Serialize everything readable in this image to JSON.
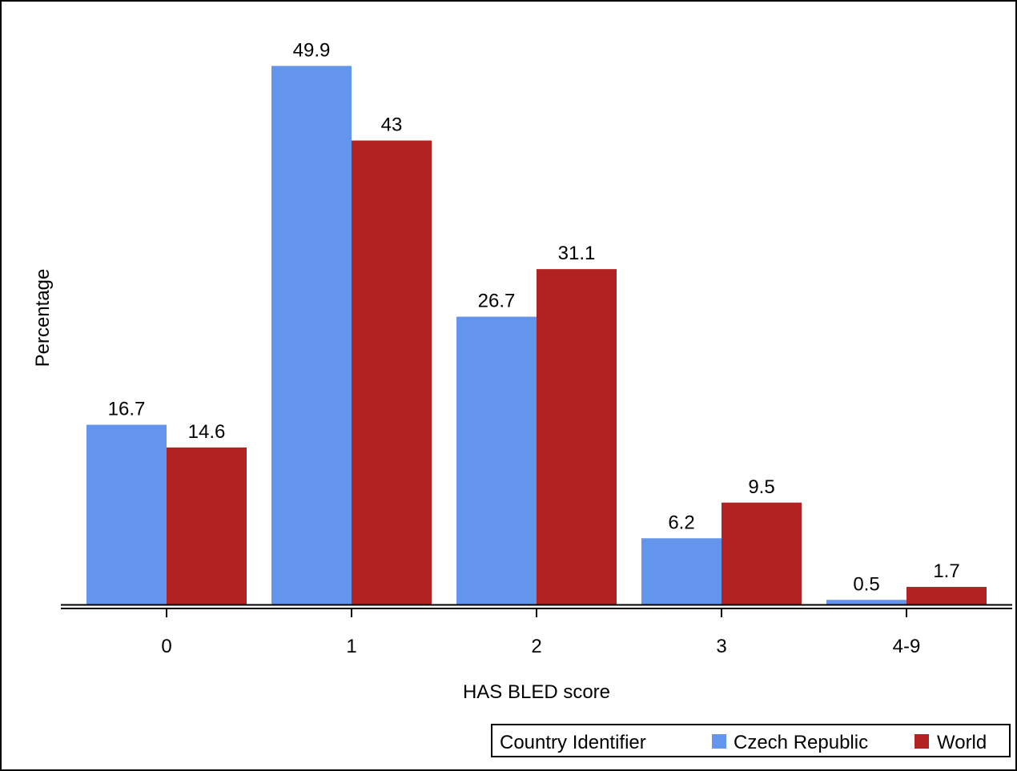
{
  "chart_data": {
    "type": "bar",
    "xlabel": "HAS BLED score",
    "ylabel": "Percentage",
    "categories": [
      "0",
      "1",
      "2",
      "3",
      "4-9"
    ],
    "series": [
      {
        "name": "Czech Republic",
        "values": [
          16.7,
          49.9,
          26.7,
          6.2,
          0.5
        ],
        "color": "#6495ed"
      },
      {
        "name": "World",
        "values": [
          14.6,
          43,
          31.1,
          9.5,
          1.7
        ],
        "color": "#b22222"
      }
    ],
    "data_labels": [
      [
        "16.7",
        "49.9",
        "26.7",
        "6.2",
        "0.5"
      ],
      [
        "14.6",
        "43",
        "31.1",
        "9.5",
        "1.7"
      ]
    ],
    "ylim": [
      0,
      55
    ],
    "grid": false,
    "legend": {
      "title": "Country Identifier",
      "placement": "bottom-right"
    }
  }
}
